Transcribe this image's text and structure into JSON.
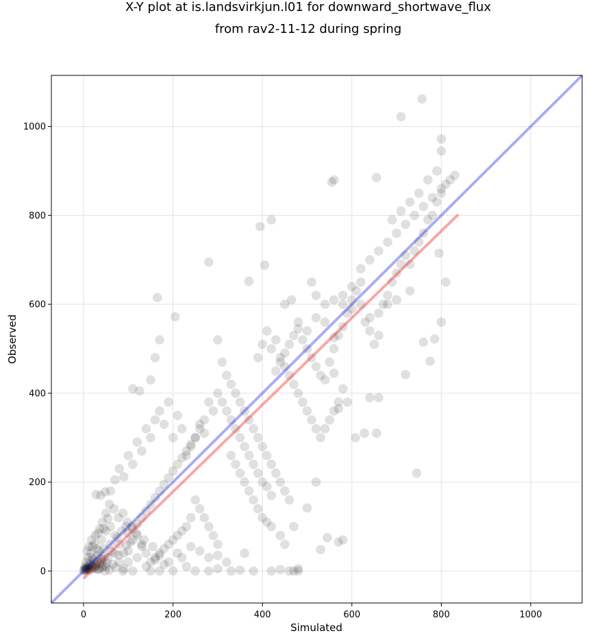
{
  "chart_data": {
    "type": "scatter",
    "title_line1": "X-Y plot at is.landsvirkjun.l01 for downward_shortwave_flux",
    "title_line2": "from rav2-11-12 during spring",
    "xlabel": "Simulated",
    "ylabel": "Observed",
    "xlim": [
      -72,
      1115
    ],
    "ylim": [
      -72,
      1115
    ],
    "xticks": [
      0,
      200,
      400,
      600,
      800,
      1000
    ],
    "yticks": [
      0,
      200,
      400,
      600,
      800,
      1000
    ],
    "grid": true,
    "colors": {
      "points": "#000000",
      "one_to_one_line": "#0000dd",
      "regression_line": "#ee2222"
    },
    "one_to_one_line": {
      "x": [
        -72,
        1115
      ],
      "y": [
        -72,
        1115
      ]
    },
    "regression_line": {
      "x": [
        0,
        838
      ],
      "y": [
        -17,
        802
      ]
    },
    "points": [
      [
        0,
        0
      ],
      [
        2,
        4
      ],
      [
        5,
        1
      ],
      [
        8,
        6
      ],
      [
        3,
        10
      ],
      [
        12,
        3
      ],
      [
        15,
        15
      ],
      [
        6,
        20
      ],
      [
        18,
        8
      ],
      [
        22,
        25
      ],
      [
        10,
        30
      ],
      [
        25,
        12
      ],
      [
        30,
        35
      ],
      [
        28,
        5
      ],
      [
        35,
        45
      ],
      [
        40,
        20
      ],
      [
        45,
        50
      ],
      [
        50,
        10
      ],
      [
        20,
        55
      ],
      [
        55,
        30
      ],
      [
        60,
        60
      ],
      [
        65,
        15
      ],
      [
        70,
        40
      ],
      [
        75,
        75
      ],
      [
        80,
        20
      ],
      [
        85,
        90
      ],
      [
        90,
        5
      ],
      [
        95,
        100
      ],
      [
        100,
        45
      ],
      [
        105,
        65
      ],
      [
        110,
        0
      ],
      [
        120,
        30
      ],
      [
        130,
        55
      ],
      [
        140,
        10
      ],
      [
        150,
        0
      ],
      [
        160,
        25
      ],
      [
        170,
        0
      ],
      [
        180,
        15
      ],
      [
        200,
        0
      ],
      [
        220,
        30
      ],
      [
        250,
        0
      ],
      [
        280,
        0
      ],
      [
        300,
        5
      ],
      [
        330,
        0
      ],
      [
        350,
        2
      ],
      [
        380,
        0
      ],
      [
        420,
        0
      ],
      [
        440,
        3
      ],
      [
        460,
        0
      ],
      [
        480,
        0
      ],
      [
        35,
        5
      ],
      [
        48,
        0
      ],
      [
        58,
        2
      ],
      [
        72,
        8
      ],
      [
        88,
        0
      ],
      [
        42,
        28
      ],
      [
        52,
        18
      ],
      [
        62,
        44
      ],
      [
        78,
        36
      ],
      [
        96,
        58
      ],
      [
        16,
        40
      ],
      [
        24,
        60
      ],
      [
        32,
        85
      ],
      [
        44,
        95
      ],
      [
        54,
        118
      ],
      [
        38,
        170
      ],
      [
        28,
        172
      ],
      [
        48,
        178
      ],
      [
        60,
        180
      ],
      [
        70,
        205
      ],
      [
        80,
        230
      ],
      [
        90,
        212
      ],
      [
        100,
        260
      ],
      [
        110,
        240
      ],
      [
        120,
        290
      ],
      [
        130,
        270
      ],
      [
        140,
        320
      ],
      [
        150,
        300
      ],
      [
        160,
        340
      ],
      [
        170,
        360
      ],
      [
        180,
        330
      ],
      [
        190,
        380
      ],
      [
        200,
        300
      ],
      [
        210,
        350
      ],
      [
        220,
        320
      ],
      [
        230,
        260
      ],
      [
        240,
        280
      ],
      [
        250,
        300
      ],
      [
        260,
        330
      ],
      [
        270,
        310
      ],
      [
        110,
        410
      ],
      [
        125,
        405
      ],
      [
        150,
        430
      ],
      [
        160,
        480
      ],
      [
        170,
        520
      ],
      [
        165,
        615
      ],
      [
        205,
        572
      ],
      [
        280,
        695
      ],
      [
        370,
        652
      ],
      [
        395,
        775
      ],
      [
        420,
        790
      ],
      [
        405,
        688
      ],
      [
        450,
        600
      ],
      [
        465,
        610
      ],
      [
        480,
        560
      ],
      [
        500,
        540
      ],
      [
        520,
        570
      ],
      [
        540,
        560
      ],
      [
        560,
        525
      ],
      [
        580,
        600
      ],
      [
        600,
        640
      ],
      [
        620,
        680
      ],
      [
        640,
        700
      ],
      [
        660,
        720
      ],
      [
        680,
        740
      ],
      [
        700,
        760
      ],
      [
        720,
        780
      ],
      [
        740,
        800
      ],
      [
        760,
        820
      ],
      [
        780,
        840
      ],
      [
        800,
        860
      ],
      [
        810,
        870
      ],
      [
        820,
        880
      ],
      [
        830,
        890
      ],
      [
        790,
        900
      ],
      [
        770,
        880
      ],
      [
        750,
        850
      ],
      [
        730,
        830
      ],
      [
        710,
        810
      ],
      [
        690,
        790
      ],
      [
        555,
        875
      ],
      [
        560,
        880
      ],
      [
        655,
        885
      ],
      [
        710,
        1022
      ],
      [
        757,
        1062
      ],
      [
        800,
        972
      ],
      [
        800,
        945
      ],
      [
        795,
        715
      ],
      [
        760,
        515
      ],
      [
        785,
        522
      ],
      [
        800,
        560
      ],
      [
        810,
        650
      ],
      [
        775,
        472
      ],
      [
        720,
        442
      ],
      [
        745,
        220
      ],
      [
        628,
        310
      ],
      [
        655,
        310
      ],
      [
        608,
        300
      ],
      [
        560,
        445
      ],
      [
        570,
        365
      ],
      [
        590,
        380
      ],
      [
        640,
        390
      ],
      [
        660,
        390
      ],
      [
        520,
        200
      ],
      [
        500,
        142
      ],
      [
        470,
        100
      ],
      [
        450,
        60
      ],
      [
        440,
        80
      ],
      [
        530,
        48
      ],
      [
        545,
        75
      ],
      [
        570,
        65
      ],
      [
        580,
        70
      ],
      [
        470,
        0
      ],
      [
        480,
        5
      ],
      [
        360,
        40
      ],
      [
        320,
        20
      ],
      [
        300,
        35
      ],
      [
        280,
        30
      ],
      [
        260,
        45
      ],
      [
        240,
        55
      ],
      [
        230,
        10
      ],
      [
        210,
        40
      ],
      [
        190,
        20
      ],
      [
        170,
        35
      ],
      [
        155,
        55
      ],
      [
        135,
        70
      ],
      [
        118,
        85
      ],
      [
        108,
        100
      ],
      [
        98,
        110
      ],
      [
        88,
        130
      ],
      [
        78,
        120
      ],
      [
        68,
        140
      ],
      [
        58,
        150
      ],
      [
        50,
        130
      ],
      [
        42,
        110
      ],
      [
        36,
        95
      ],
      [
        26,
        80
      ],
      [
        18,
        70
      ],
      [
        12,
        55
      ],
      [
        8,
        45
      ],
      [
        300,
        520
      ],
      [
        310,
        470
      ],
      [
        320,
        440
      ],
      [
        330,
        420
      ],
      [
        340,
        400
      ],
      [
        350,
        380
      ],
      [
        360,
        360
      ],
      [
        370,
        340
      ],
      [
        380,
        320
      ],
      [
        390,
        300
      ],
      [
        400,
        280
      ],
      [
        410,
        260
      ],
      [
        420,
        240
      ],
      [
        430,
        220
      ],
      [
        440,
        200
      ],
      [
        450,
        180
      ],
      [
        460,
        160
      ],
      [
        300,
        400
      ],
      [
        310,
        380
      ],
      [
        320,
        360
      ],
      [
        330,
        340
      ],
      [
        340,
        320
      ],
      [
        350,
        300
      ],
      [
        360,
        280
      ],
      [
        370,
        260
      ],
      [
        380,
        240
      ],
      [
        390,
        220
      ],
      [
        400,
        200
      ],
      [
        410,
        190
      ],
      [
        420,
        170
      ],
      [
        280,
        380
      ],
      [
        290,
        360
      ],
      [
        270,
        340
      ],
      [
        260,
        320
      ],
      [
        250,
        300
      ],
      [
        240,
        285
      ],
      [
        230,
        270
      ],
      [
        220,
        255
      ],
      [
        210,
        240
      ],
      [
        200,
        225
      ],
      [
        190,
        210
      ],
      [
        180,
        195
      ],
      [
        170,
        180
      ],
      [
        160,
        165
      ],
      [
        150,
        150
      ],
      [
        140,
        135
      ],
      [
        130,
        120
      ],
      [
        120,
        105
      ],
      [
        110,
        95
      ],
      [
        100,
        85
      ],
      [
        430,
        450
      ],
      [
        440,
        470
      ],
      [
        450,
        490
      ],
      [
        460,
        510
      ],
      [
        470,
        530
      ],
      [
        480,
        545
      ],
      [
        490,
        520
      ],
      [
        500,
        500
      ],
      [
        510,
        480
      ],
      [
        520,
        460
      ],
      [
        530,
        440
      ],
      [
        540,
        430
      ],
      [
        550,
        470
      ],
      [
        560,
        500
      ],
      [
        570,
        530
      ],
      [
        580,
        550
      ],
      [
        590,
        580
      ],
      [
        600,
        610
      ],
      [
        610,
        630
      ],
      [
        620,
        650
      ],
      [
        630,
        560
      ],
      [
        640,
        540
      ],
      [
        650,
        510
      ],
      [
        660,
        530
      ],
      [
        670,
        600
      ],
      [
        680,
        620
      ],
      [
        690,
        650
      ],
      [
        700,
        670
      ],
      [
        710,
        690
      ],
      [
        720,
        710
      ],
      [
        730,
        690
      ],
      [
        740,
        720
      ],
      [
        750,
        740
      ],
      [
        760,
        760
      ],
      [
        770,
        790
      ],
      [
        780,
        800
      ],
      [
        790,
        830
      ],
      [
        800,
        850
      ],
      [
        730,
        630
      ],
      [
        700,
        610
      ],
      [
        680,
        600
      ],
      [
        660,
        580
      ],
      [
        640,
        570
      ],
      [
        620,
        600
      ],
      [
        600,
        590
      ],
      [
        580,
        620
      ],
      [
        560,
        610
      ],
      [
        540,
        600
      ],
      [
        520,
        620
      ],
      [
        510,
        650
      ],
      [
        390,
        480
      ],
      [
        400,
        510
      ],
      [
        410,
        540
      ],
      [
        420,
        500
      ],
      [
        430,
        520
      ],
      [
        440,
        480
      ],
      [
        450,
        460
      ],
      [
        460,
        440
      ],
      [
        470,
        420
      ],
      [
        480,
        400
      ],
      [
        490,
        380
      ],
      [
        500,
        360
      ],
      [
        510,
        340
      ],
      [
        520,
        320
      ],
      [
        530,
        300
      ],
      [
        540,
        320
      ],
      [
        550,
        340
      ],
      [
        560,
        360
      ],
      [
        570,
        380
      ],
      [
        580,
        410
      ],
      [
        330,
        260
      ],
      [
        340,
        240
      ],
      [
        350,
        220
      ],
      [
        360,
        200
      ],
      [
        370,
        180
      ],
      [
        380,
        160
      ],
      [
        390,
        140
      ],
      [
        400,
        120
      ],
      [
        410,
        110
      ],
      [
        420,
        100
      ],
      [
        250,
        160
      ],
      [
        260,
        140
      ],
      [
        270,
        120
      ],
      [
        280,
        100
      ],
      [
        290,
        80
      ],
      [
        300,
        60
      ],
      [
        240,
        120
      ],
      [
        230,
        100
      ],
      [
        220,
        90
      ],
      [
        210,
        80
      ],
      [
        200,
        70
      ],
      [
        190,
        60
      ],
      [
        180,
        50
      ],
      [
        170,
        40
      ],
      [
        160,
        30
      ],
      [
        150,
        20
      ],
      [
        140,
        40
      ],
      [
        130,
        60
      ],
      [
        120,
        80
      ],
      [
        110,
        70
      ],
      [
        100,
        20
      ],
      [
        90,
        40
      ],
      [
        80,
        60
      ],
      [
        70,
        80
      ],
      [
        60,
        100
      ],
      [
        50,
        90
      ],
      [
        40,
        70
      ],
      [
        30,
        50
      ],
      [
        20,
        30
      ],
      [
        14,
        22
      ],
      [
        3,
        2
      ],
      [
        4,
        6
      ],
      [
        6,
        3
      ],
      [
        7,
        8
      ],
      [
        9,
        4
      ],
      [
        11,
        11
      ],
      [
        13,
        7
      ],
      [
        16,
        2
      ],
      [
        19,
        12
      ],
      [
        21,
        6
      ],
      [
        23,
        18
      ],
      [
        26,
        9
      ],
      [
        29,
        14
      ],
      [
        31,
        22
      ],
      [
        33,
        3
      ],
      [
        36,
        16
      ],
      [
        39,
        26
      ],
      [
        41,
        8
      ],
      [
        44,
        12
      ],
      [
        47,
        32
      ]
    ]
  }
}
